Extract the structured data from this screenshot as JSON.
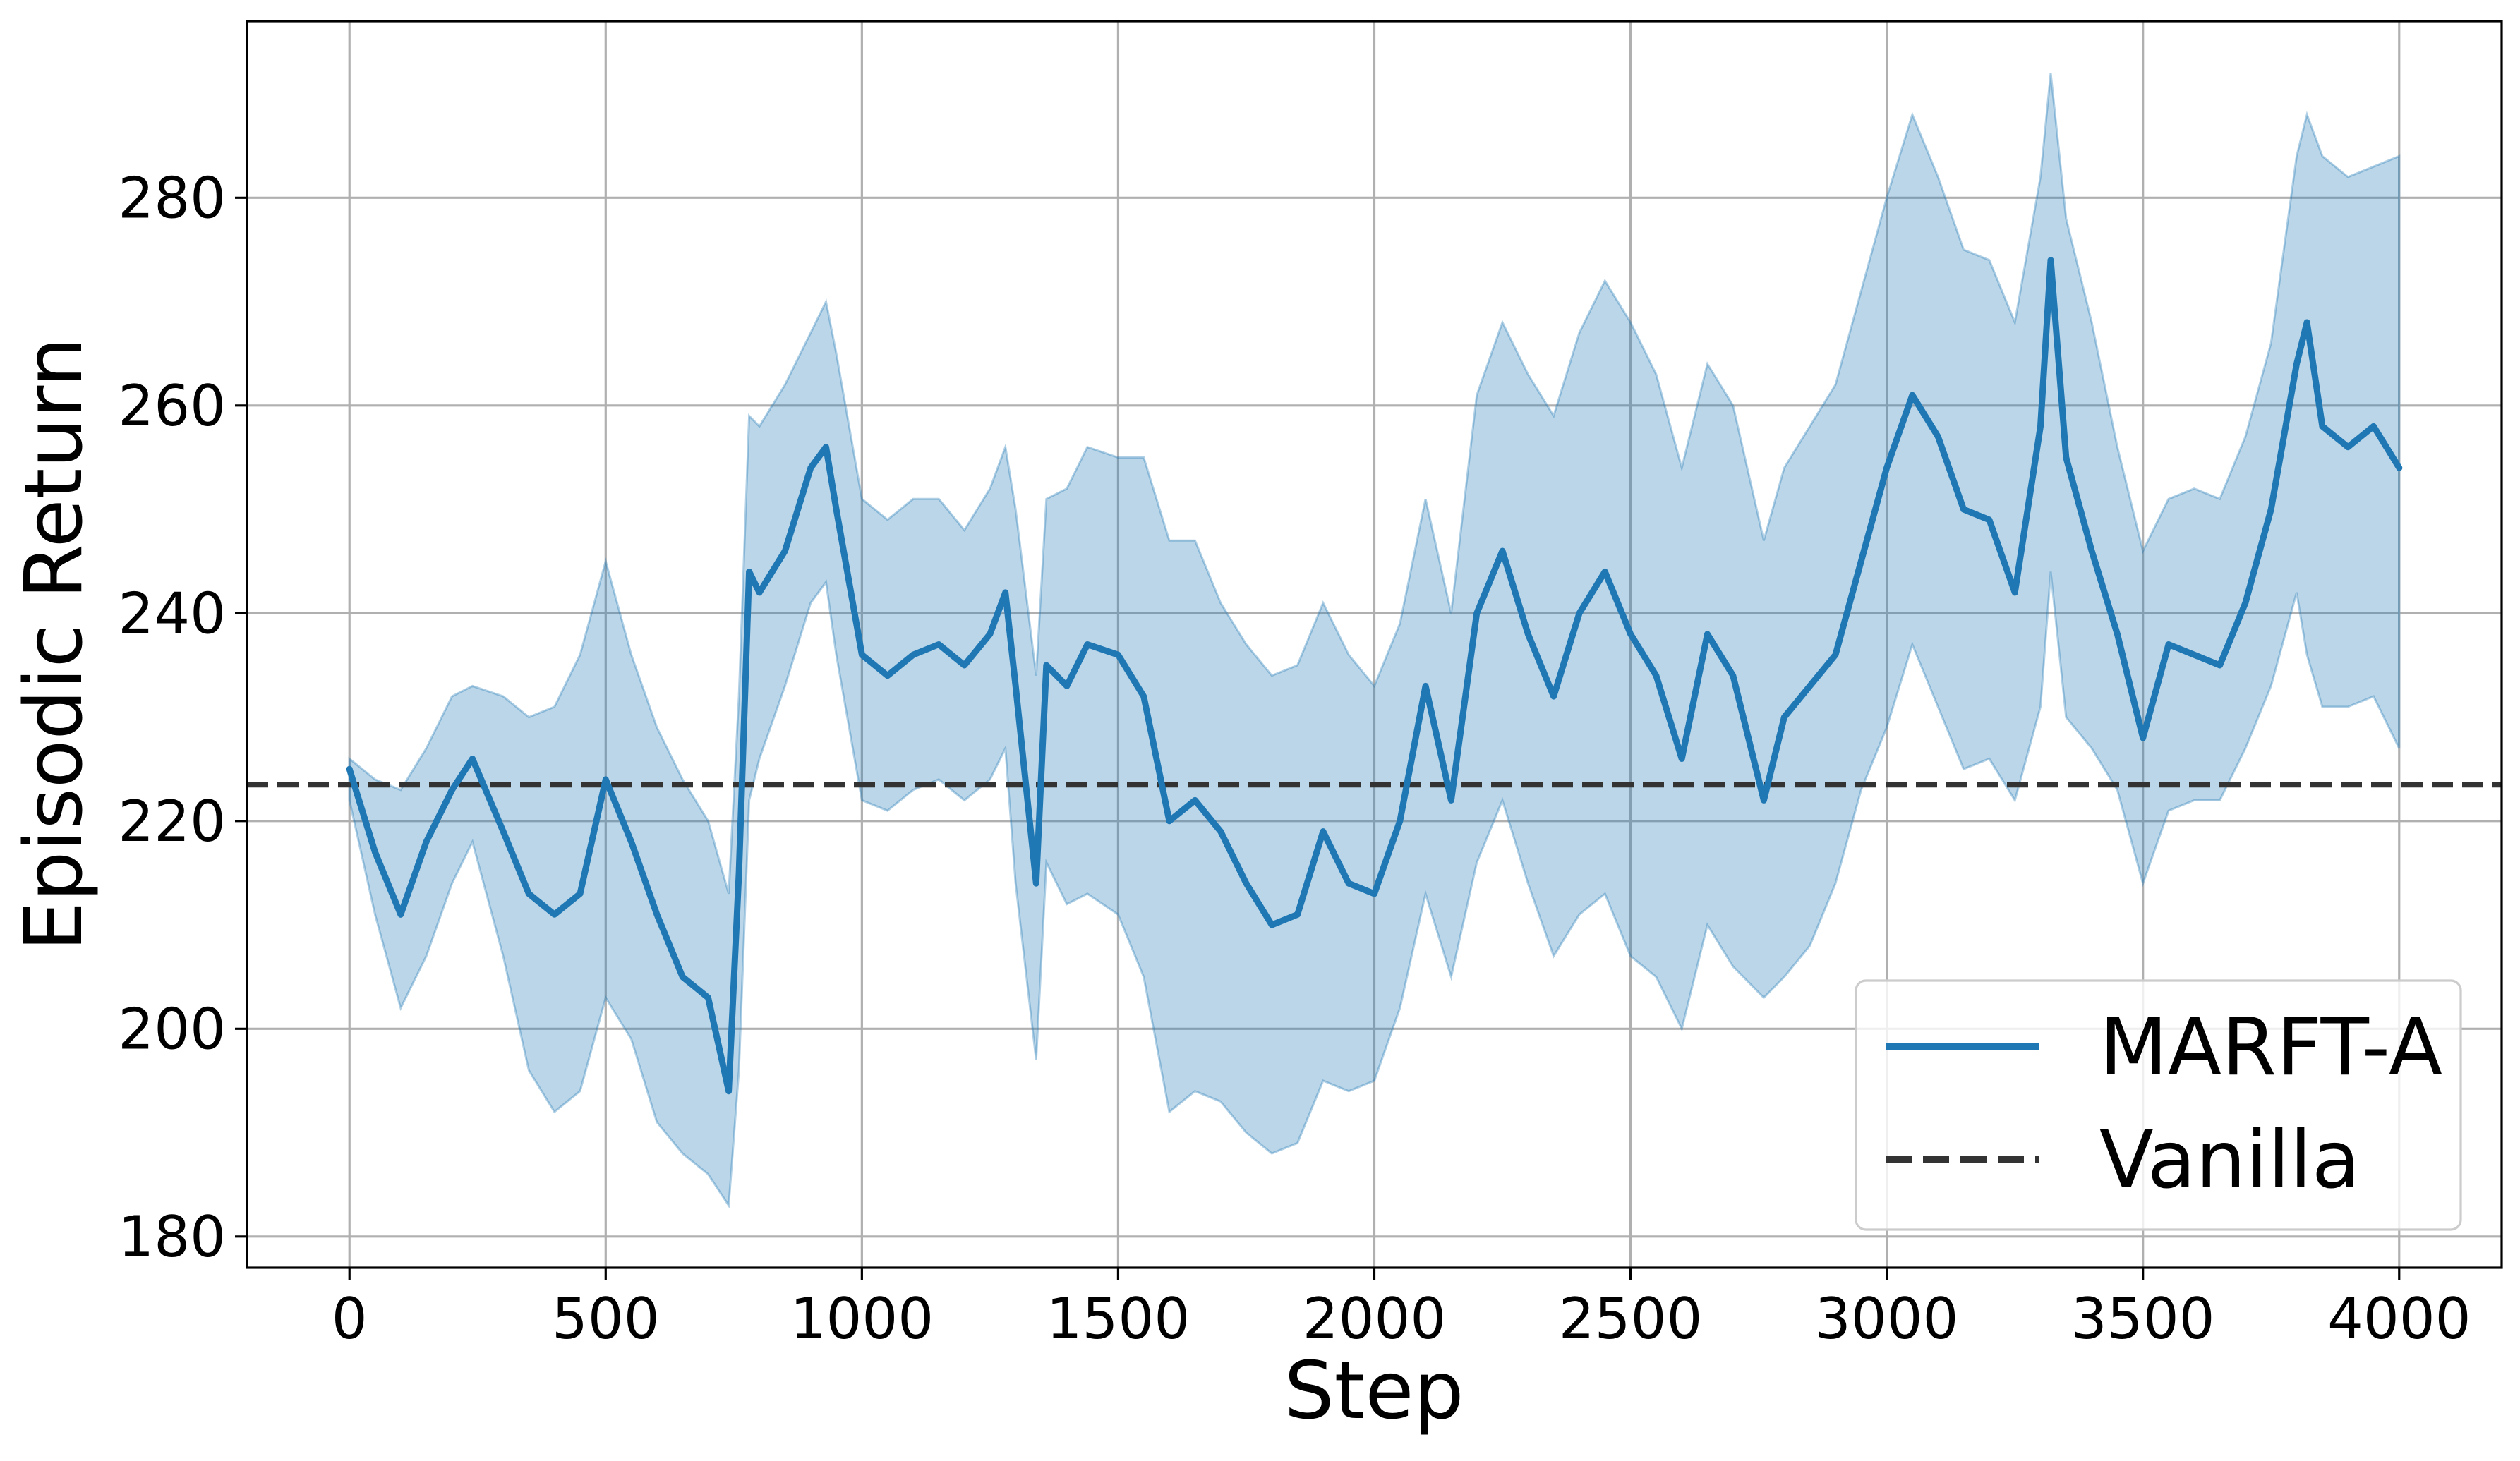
{
  "chart_data": {
    "type": "line",
    "title": "",
    "xlabel": "Step",
    "ylabel": "Episodic Return",
    "xlim": [
      -200,
      4200
    ],
    "ylim": [
      177,
      297
    ],
    "xticks": [
      0,
      500,
      1000,
      1500,
      2000,
      2500,
      3000,
      3500,
      4000
    ],
    "yticks": [
      180,
      200,
      220,
      240,
      260,
      280
    ],
    "xtick_labels": [
      "0",
      "500",
      "1000",
      "1500",
      "2000",
      "2500",
      "3000",
      "3500",
      "4000"
    ],
    "ytick_labels": [
      "180",
      "200",
      "220",
      "240",
      "260",
      "280"
    ],
    "grid": true,
    "legend": {
      "position": "lower-right",
      "entries": [
        "MARFT-A",
        "Vanilla"
      ]
    },
    "series": [
      {
        "name": "MARFT-A",
        "style": "solid",
        "color": "#1f77b4",
        "band_color": "#1f77b4",
        "x": [
          0,
          50,
          100,
          150,
          200,
          240,
          300,
          350,
          400,
          450,
          500,
          550,
          600,
          650,
          700,
          740,
          760,
          780,
          800,
          850,
          900,
          930,
          950,
          1000,
          1050,
          1100,
          1150,
          1200,
          1250,
          1280,
          1300,
          1340,
          1360,
          1400,
          1440,
          1500,
          1550,
          1600,
          1650,
          1700,
          1750,
          1800,
          1850,
          1900,
          1950,
          2000,
          2050,
          2100,
          2150,
          2200,
          2250,
          2300,
          2350,
          2400,
          2450,
          2500,
          2550,
          2600,
          2650,
          2700,
          2760,
          2800,
          2850,
          2900,
          2950,
          3000,
          3050,
          3100,
          3150,
          3200,
          3250,
          3300,
          3320,
          3350,
          3400,
          3450,
          3500,
          3550,
          3600,
          3650,
          3700,
          3750,
          3800,
          3820,
          3850,
          3900,
          3950,
          4000
        ],
        "values": [
          225,
          217,
          211,
          218,
          223,
          226,
          219,
          213,
          211,
          213,
          224,
          218,
          211,
          205,
          203,
          194,
          215,
          244,
          242,
          246,
          254,
          256,
          250,
          236,
          234,
          236,
          237,
          235,
          238,
          242,
          233,
          214,
          235,
          233,
          237,
          236,
          232,
          220,
          222,
          219,
          214,
          210,
          211,
          219,
          214,
          213,
          220,
          233,
          222,
          240,
          246,
          238,
          232,
          240,
          244,
          238,
          234,
          226,
          238,
          234,
          222,
          230,
          233,
          236,
          245,
          254,
          261,
          257,
          250,
          249,
          242,
          258,
          274,
          255,
          246,
          238,
          228,
          237,
          236,
          235,
          241,
          250,
          264,
          268,
          258,
          256,
          258,
          254
        ],
        "lower": [
          222,
          211,
          202,
          207,
          214,
          218,
          207,
          196,
          192,
          194,
          203,
          199,
          191,
          188,
          186,
          183,
          196,
          222,
          226,
          233,
          241,
          243,
          236,
          222,
          221,
          223,
          224,
          222,
          224,
          227,
          214,
          197,
          216,
          212,
          213,
          211,
          205,
          192,
          194,
          193,
          190,
          188,
          189,
          195,
          194,
          195,
          202,
          213,
          205,
          216,
          222,
          214,
          207,
          211,
          213,
          207,
          205,
          200,
          210,
          206,
          203,
          205,
          208,
          214,
          223,
          229,
          237,
          231,
          225,
          226,
          222,
          231,
          244,
          230,
          227,
          223,
          214,
          221,
          222,
          222,
          227,
          233,
          242,
          236,
          231,
          231,
          232,
          227
        ],
        "upper": [
          226,
          224,
          223,
          227,
          232,
          233,
          232,
          230,
          231,
          236,
          245,
          236,
          229,
          224,
          220,
          213,
          232,
          259,
          258,
          262,
          267,
          270,
          265,
          251,
          249,
          251,
          251,
          248,
          252,
          256,
          250,
          234,
          251,
          252,
          256,
          255,
          255,
          247,
          247,
          241,
          237,
          234,
          235,
          241,
          236,
          233,
          239,
          251,
          240,
          261,
          268,
          263,
          259,
          267,
          272,
          268,
          263,
          254,
          264,
          260,
          247,
          254,
          258,
          262,
          271,
          280,
          288,
          282,
          275,
          274,
          268,
          282,
          292,
          278,
          268,
          256,
          246,
          251,
          252,
          251,
          257,
          266,
          284,
          288,
          284,
          282,
          283,
          284
        ]
      },
      {
        "name": "Vanilla",
        "style": "dashed",
        "color": "#333333",
        "x": [
          -200,
          4200
        ],
        "values": [
          223.5,
          223.5
        ]
      }
    ]
  }
}
